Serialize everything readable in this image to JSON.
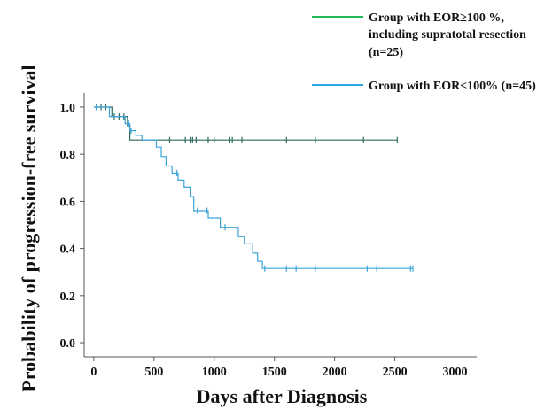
{
  "chart_data": {
    "type": "line",
    "xlabel": "Days after Diagnosis",
    "ylabel": "Probability of progression-free survival",
    "xlim": [
      -80,
      3180
    ],
    "ylim": [
      -0.06,
      1.06
    ],
    "x_ticks": [
      0,
      500,
      1000,
      1500,
      2000,
      2500,
      3000
    ],
    "y_ticks": [
      0.0,
      0.2,
      0.4,
      0.6,
      0.8,
      1.0
    ],
    "y_tick_labels": [
      "0.0",
      "0.2",
      "0.4",
      "0.6",
      "0.8",
      "1.0"
    ],
    "grid": false,
    "legend_position": "top-right",
    "series": [
      {
        "name": "Group with EOR≥100 %, including supratotal resection (n=25)",
        "legend_lines": [
          "Group with EOR≥100 %,",
          "including supratotal resection",
          "(n=25)"
        ],
        "color": "#2e6b5e",
        "legend_color": "#1db954",
        "steps": [
          [
            0,
            1.0
          ],
          [
            150,
            1.0
          ],
          [
            150,
            0.96
          ],
          [
            280,
            0.96
          ],
          [
            280,
            0.92
          ],
          [
            300,
            0.92
          ],
          [
            300,
            0.86
          ],
          [
            2520,
            0.86
          ]
        ],
        "censor_x": [
          20,
          60,
          100,
          170,
          210,
          250,
          630,
          760,
          800,
          820,
          850,
          950,
          1000,
          1130,
          1150,
          1230,
          1600,
          1840,
          2240,
          2520
        ]
      },
      {
        "name": "Group with EOR<100% (n=45)",
        "legend_lines": [
          "Group with EOR<100% (n=45)"
        ],
        "color": "#3aa3d9",
        "legend_color": "#2aa7e0",
        "steps": [
          [
            0,
            1.0
          ],
          [
            130,
            1.0
          ],
          [
            130,
            0.96
          ],
          [
            260,
            0.96
          ],
          [
            260,
            0.93
          ],
          [
            300,
            0.93
          ],
          [
            300,
            0.9
          ],
          [
            350,
            0.9
          ],
          [
            350,
            0.88
          ],
          [
            400,
            0.88
          ],
          [
            400,
            0.86
          ],
          [
            520,
            0.86
          ],
          [
            520,
            0.83
          ],
          [
            560,
            0.83
          ],
          [
            560,
            0.79
          ],
          [
            600,
            0.79
          ],
          [
            600,
            0.75
          ],
          [
            650,
            0.75
          ],
          [
            650,
            0.72
          ],
          [
            700,
            0.72
          ],
          [
            700,
            0.69
          ],
          [
            750,
            0.69
          ],
          [
            750,
            0.66
          ],
          [
            800,
            0.66
          ],
          [
            800,
            0.62
          ],
          [
            830,
            0.62
          ],
          [
            830,
            0.56
          ],
          [
            950,
            0.56
          ],
          [
            950,
            0.53
          ],
          [
            1050,
            0.53
          ],
          [
            1050,
            0.49
          ],
          [
            1200,
            0.49
          ],
          [
            1200,
            0.45
          ],
          [
            1250,
            0.45
          ],
          [
            1250,
            0.42
          ],
          [
            1320,
            0.42
          ],
          [
            1320,
            0.38
          ],
          [
            1360,
            0.38
          ],
          [
            1360,
            0.345
          ],
          [
            1400,
            0.345
          ],
          [
            1400,
            0.315
          ],
          [
            2650,
            0.315
          ]
        ],
        "censor_x": [
          20,
          290,
          310,
          690,
          860,
          940,
          1090,
          1420,
          1600,
          1680,
          1840,
          2270,
          2350,
          2630,
          2650
        ]
      }
    ]
  }
}
